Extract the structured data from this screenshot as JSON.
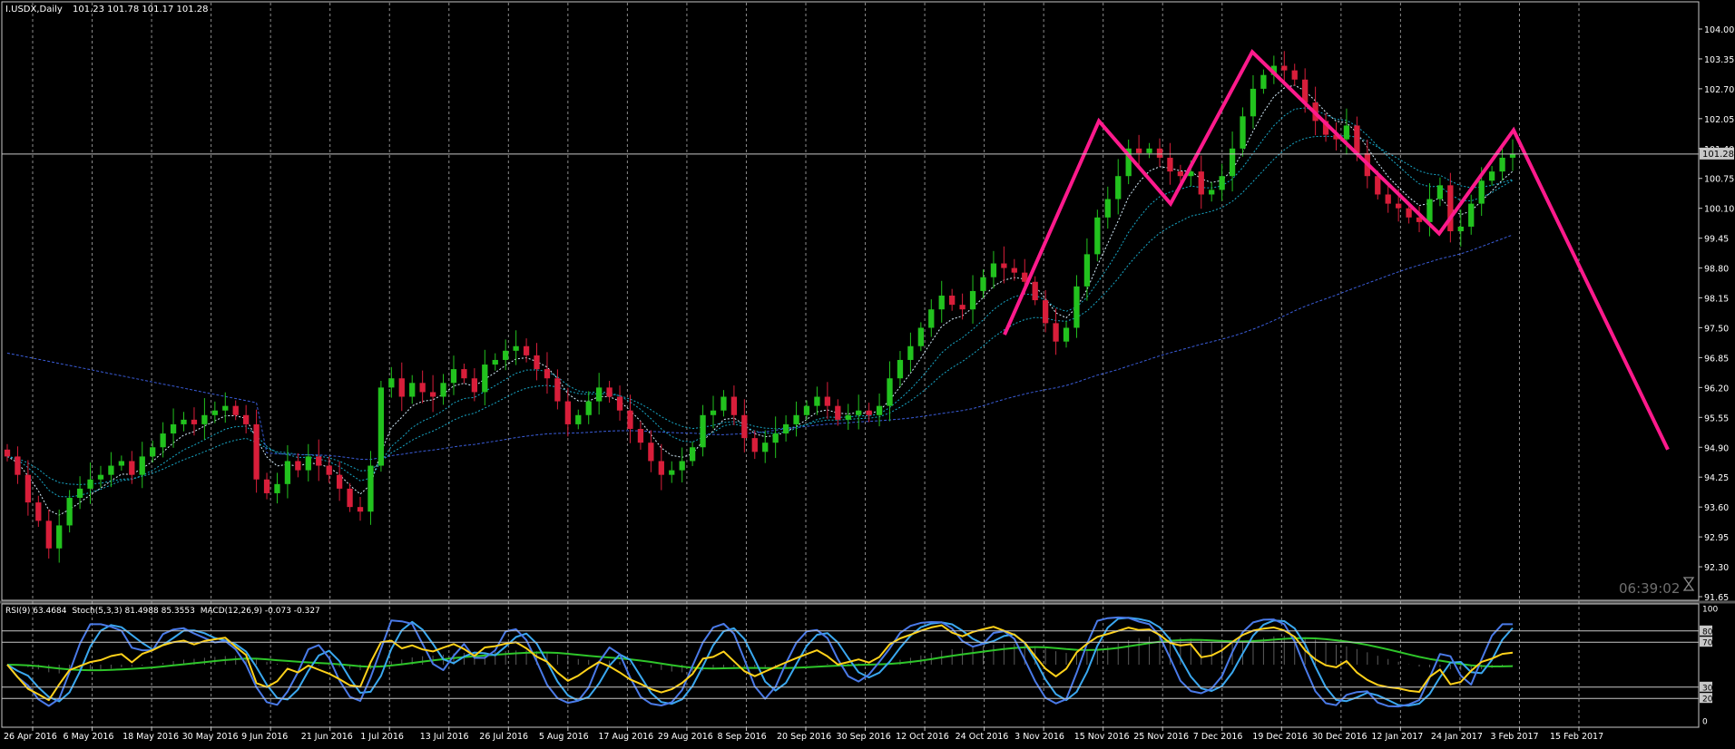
{
  "header": {
    "symbol": "I.USDX,Daily",
    "ohlc": "101.23 101.78 101.17 101.28"
  },
  "timer": "06:39:02",
  "price_tag": "101.28",
  "indicator_header": {
    "rsi": "RSI(9) 63.4684",
    "stoch": "Stoch(5,3,3) 81.4988 85.3553",
    "macd": "MACD(12,26,9) -0.073 -0.327"
  },
  "colors": {
    "background": "#000000",
    "grid": "#c8c8c8",
    "bull": "#22c21e",
    "bear": "#d81e3a",
    "zigzag": "#ff1a8c",
    "ma": "#18a8c8",
    "ma_long": "#3a5cd8",
    "rsi": "#ffd21a",
    "stoch_main": "#4a7ae8",
    "stoch_signal": "#3aa8f0",
    "macd_signal": "#2ec52a",
    "histogram": "#9a9a9a",
    "axis_text": "#ffffff"
  },
  "chart_data": [
    {
      "type": "candlestick",
      "title": "I.USDX,Daily",
      "x_ticks": [
        "26 Apr 2016",
        "6 May 2016",
        "18 May 2016",
        "30 May 2016",
        "9 Jun 2016",
        "21 Jun 2016",
        "1 Jul 2016",
        "13 Jul 2016",
        "26 Jul 2016",
        "5 Aug 2016",
        "17 Aug 2016",
        "29 Aug 2016",
        "8 Sep 2016",
        "20 Sep 2016",
        "30 Sep 2016",
        "12 Oct 2016",
        "24 Oct 2016",
        "3 Nov 2016",
        "15 Nov 2016",
        "25 Nov 2016",
        "7 Dec 2016",
        "19 Dec 2016",
        "30 Dec 2016",
        "12 Jan 2017",
        "24 Jan 2017",
        "3 Feb 2017",
        "15 Feb 2017"
      ],
      "y_ticks": [
        "104.00",
        "103.35",
        "102.70",
        "102.05",
        "101.40",
        "100.75",
        "100.10",
        "99.45",
        "98.80",
        "98.15",
        "97.50",
        "96.85",
        "96.20",
        "95.55",
        "94.90",
        "94.25",
        "93.60",
        "92.95",
        "92.30",
        "91.65"
      ],
      "ylim": [
        91.65,
        104.3
      ],
      "current_price": 101.28,
      "close_path": [
        94.7,
        94.3,
        93.7,
        93.3,
        92.7,
        93.2,
        93.8,
        94.0,
        94.2,
        94.3,
        94.5,
        94.6,
        94.3,
        94.7,
        94.9,
        95.2,
        95.4,
        95.5,
        95.4,
        95.6,
        95.7,
        95.8,
        95.6,
        95.4,
        94.2,
        93.9,
        94.1,
        94.6,
        94.4,
        94.7,
        94.5,
        94.3,
        94.0,
        93.6,
        93.5,
        94.5,
        96.2,
        96.4,
        96.0,
        96.3,
        96.1,
        96.0,
        96.3,
        96.6,
        96.4,
        96.1,
        96.7,
        96.8,
        97.0,
        97.1,
        96.9,
        96.6,
        96.4,
        95.9,
        95.4,
        95.6,
        95.9,
        96.2,
        96.0,
        95.7,
        95.3,
        95.0,
        94.6,
        94.3,
        94.4,
        94.6,
        94.9,
        95.6,
        95.7,
        96.0,
        95.6,
        95.1,
        94.8,
        95.0,
        95.2,
        95.4,
        95.6,
        95.8,
        96.0,
        95.8,
        95.5,
        95.6,
        95.7,
        95.6,
        95.8,
        96.4,
        96.8,
        97.1,
        97.5,
        97.9,
        98.2,
        98.0,
        97.9,
        98.3,
        98.6,
        98.9,
        98.8,
        98.7,
        98.5,
        98.1,
        97.6,
        97.2,
        97.5,
        98.4,
        99.1,
        99.9,
        100.3,
        100.8,
        101.4,
        101.3,
        101.4,
        101.2,
        100.9,
        100.8,
        100.9,
        100.4,
        100.5,
        100.8,
        101.4,
        102.1,
        102.7,
        103.0,
        103.2,
        103.1,
        102.9,
        102.4,
        102.0,
        101.7,
        101.6,
        101.9,
        101.3,
        100.8,
        100.4,
        100.2,
        100.1,
        99.9,
        99.8,
        100.3,
        100.6,
        99.6,
        99.7,
        100.2,
        100.7,
        100.9,
        101.2,
        101.28
      ],
      "zigzag": [
        {
          "x": "3 Nov 2016",
          "y": 97.35
        },
        {
          "x": "",
          "y": 102.0
        },
        {
          "x": "",
          "y": 100.2
        },
        {
          "x": "",
          "y": 103.5
        },
        {
          "x": "",
          "y": 99.55
        },
        {
          "x": "",
          "y": 101.8
        },
        {
          "x": "",
          "y": 94.85
        }
      ]
    },
    {
      "type": "line",
      "title": "RSI(9) / Stoch(5,3,3) / MACD(12,26,9)",
      "y_ticks": [
        "100",
        "80",
        "70",
        "30",
        "20",
        "0"
      ],
      "ylim": [
        0,
        100
      ],
      "levels": [
        80,
        70,
        30,
        20
      ],
      "rsi_last": 63.4684,
      "stoch_main_last": 81.4988,
      "stoch_signal_last": 85.3553,
      "macd_last": -0.073,
      "macd_signal_last": -0.327
    }
  ]
}
